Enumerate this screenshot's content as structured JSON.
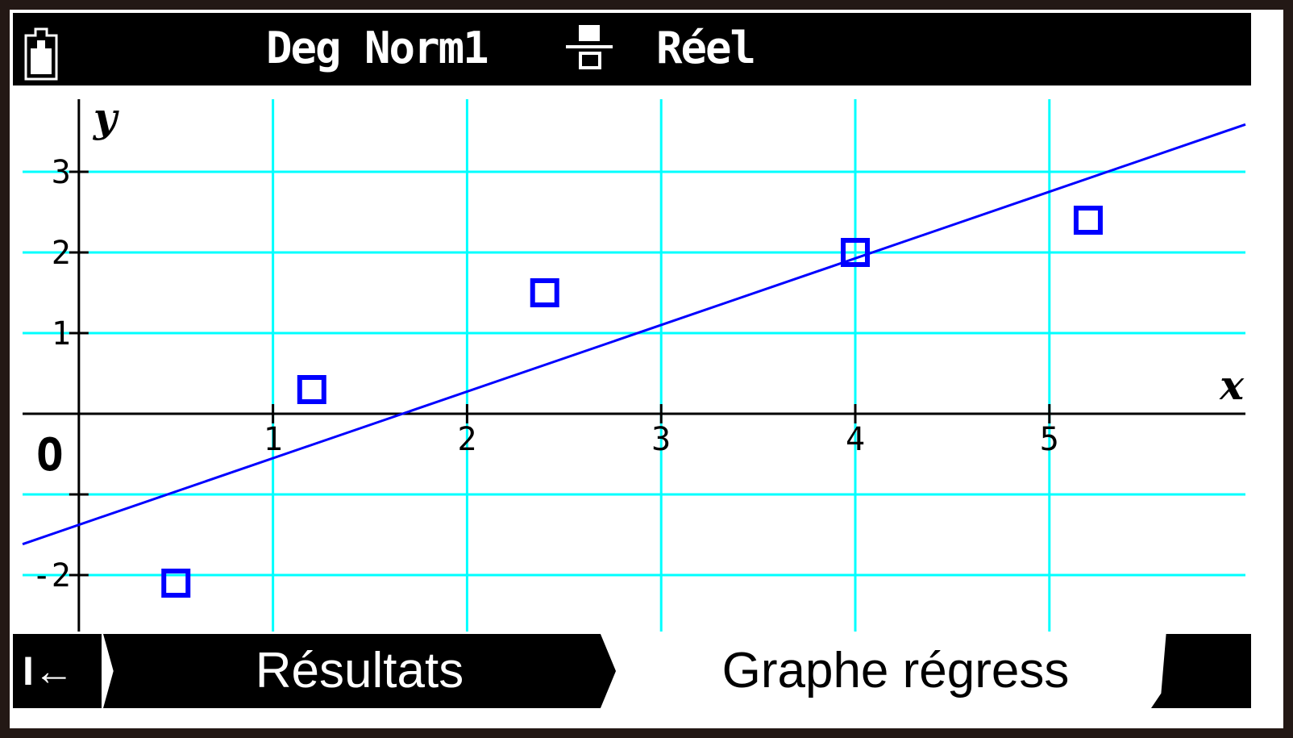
{
  "status_bar": {
    "battery_icon": "battery-full-icon",
    "angle_format": "Deg Norm1",
    "display_icon": "display-mode-icon",
    "number_mode": "Réel"
  },
  "bottom_bar": {
    "back_label": "I←",
    "tabs": [
      {
        "label": "Résultats",
        "selected": false
      },
      {
        "label": "Graphe régress",
        "selected": true
      }
    ]
  },
  "colors": {
    "grid": "#00ffff",
    "points": "#0000ff",
    "line": "#0000ff",
    "axis": "#000000"
  },
  "chart_data": {
    "type": "scatter",
    "xlabel": "x",
    "ylabel": "y",
    "origin_label": "O",
    "xlim": [
      -0.29,
      6.01
    ],
    "ylim": [
      -2.7,
      3.9
    ],
    "grid": true,
    "x_ticks": [
      1,
      2,
      3,
      4,
      5
    ],
    "x_tick_labels": [
      "1",
      "2",
      "3",
      "4",
      "5"
    ],
    "y_ticks": [
      -2,
      -1,
      1,
      2,
      3
    ],
    "y_tick_labels": [
      "3",
      "2",
      "1",
      "-2"
    ],
    "y_labeled_ticks": [
      3,
      2,
      1,
      -2
    ],
    "points": [
      {
        "x": 0.5,
        "y": -2.1
      },
      {
        "x": 1.2,
        "y": 0.3
      },
      {
        "x": 2.4,
        "y": 1.5
      },
      {
        "x": 4.0,
        "y": 2.0
      },
      {
        "x": 5.2,
        "y": 2.4
      }
    ],
    "regression_line": {
      "type": "linear",
      "slope": 0.826,
      "intercept": -1.377
    }
  }
}
